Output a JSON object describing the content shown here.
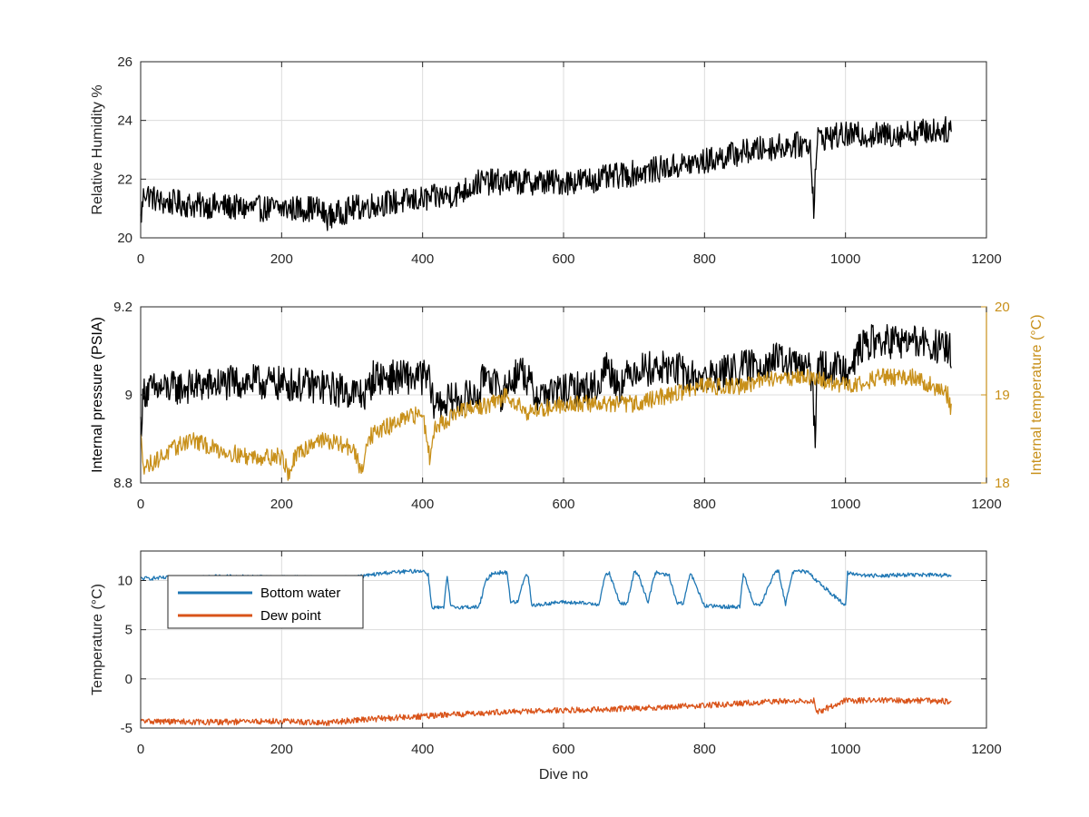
{
  "colors": {
    "humidity": "#000000",
    "pressure": "#000000",
    "internal_temp": "#c8901a",
    "right_axis": "#c8901a",
    "bottom_water": "#1f77b4",
    "dew_point": "#d95319"
  },
  "chart_data": [
    {
      "type": "line",
      "xlabel": "",
      "ylabel": "Relative Humidity %",
      "xlim": [
        0,
        1200
      ],
      "ylim": [
        20,
        26
      ],
      "xticks": [
        0,
        200,
        400,
        600,
        800,
        1000,
        1200
      ],
      "yticks": [
        20,
        22,
        24,
        26
      ],
      "xtick_labels": [
        "0",
        "200",
        "400",
        "600",
        "800",
        "1000",
        "1200"
      ],
      "ytick_labels": [
        "20",
        "22",
        "24",
        "26"
      ],
      "grid": true,
      "series": [
        {
          "x": [
            0,
            5,
            15,
            30,
            50,
            75,
            100,
            150,
            200,
            250,
            265,
            300,
            350,
            400,
            450,
            480,
            500,
            550,
            600,
            650,
            700,
            750,
            800,
            850,
            900,
            950,
            955,
            960,
            1000,
            1050,
            1100,
            1150
          ],
          "y": [
            20.6,
            21.6,
            21.4,
            21.2,
            21.2,
            21.1,
            21.1,
            21.0,
            21.0,
            21.0,
            20.7,
            21.0,
            21.2,
            21.3,
            21.5,
            21.9,
            21.9,
            21.9,
            21.9,
            22.0,
            22.2,
            22.4,
            22.6,
            22.9,
            23.1,
            23.2,
            21.1,
            23.4,
            23.5,
            23.5,
            23.6,
            23.7
          ],
          "noise": 0.45
        }
      ]
    },
    {
      "type": "line",
      "xlabel": "",
      "ylabel": "Internal pressure (PSIA)",
      "ylabel_right": "Internal temperature (°C)",
      "xlim": [
        0,
        1200
      ],
      "ylim": [
        8.8,
        9.2
      ],
      "ylim_right": [
        18,
        20
      ],
      "xticks": [
        0,
        200,
        400,
        600,
        800,
        1000,
        1200
      ],
      "yticks": [
        8.8,
        9,
        9.2
      ],
      "yticks_right": [
        18,
        19,
        20
      ],
      "xtick_labels": [
        "0",
        "200",
        "400",
        "600",
        "800",
        "1000",
        "1200"
      ],
      "ytick_labels": [
        "8.8",
        "9",
        "9.2"
      ],
      "ytick_labels_right": [
        "18",
        "19",
        "20"
      ],
      "grid": true,
      "series": [
        {
          "axis": "left",
          "x": [
            0,
            5,
            80,
            150,
            250,
            320,
            330,
            410,
            412,
            420,
            480,
            490,
            510,
            540,
            560,
            650,
            660,
            680,
            700,
            730,
            760,
            780,
            800,
            850,
            900,
            950,
            957,
            960,
            1000,
            1030,
            1100,
            1150
          ],
          "y": [
            8.93,
            9.01,
            9.02,
            9.03,
            9.02,
            9.0,
            9.04,
            9.04,
            8.99,
            8.98,
            9.0,
            9.06,
            9.0,
            9.06,
            9.0,
            9.02,
            9.07,
            9.02,
            9.06,
            9.06,
            9.06,
            9.04,
            9.04,
            9.06,
            9.08,
            9.06,
            8.92,
            9.06,
            9.06,
            9.12,
            9.12,
            9.1
          ],
          "noise": 0.04
        },
        {
          "axis": "right",
          "x": [
            0,
            5,
            10,
            50,
            70,
            100,
            150,
            200,
            210,
            220,
            250,
            300,
            315,
            320,
            340,
            400,
            410,
            415,
            430,
            450,
            500,
            520,
            550,
            600,
            650,
            700,
            750,
            800,
            850,
            900,
            950,
            1000,
            1050,
            1100,
            1145,
            1150
          ],
          "y": [
            18.5,
            18.2,
            18.2,
            18.4,
            18.5,
            18.4,
            18.3,
            18.3,
            18.1,
            18.3,
            18.5,
            18.4,
            18.1,
            18.5,
            18.6,
            18.8,
            18.3,
            18.6,
            18.7,
            18.8,
            18.9,
            19.0,
            18.8,
            18.9,
            18.9,
            18.9,
            19.0,
            19.1,
            19.1,
            19.2,
            19.2,
            19.1,
            19.2,
            19.2,
            19.0,
            18.8
          ],
          "noise": 0.1
        }
      ]
    },
    {
      "type": "line",
      "xlabel": "Dive no",
      "ylabel": "Temperature (°C)",
      "xlim": [
        0,
        1200
      ],
      "ylim": [
        -5,
        13
      ],
      "xticks": [
        0,
        200,
        400,
        600,
        800,
        1000,
        1200
      ],
      "yticks": [
        -5,
        0,
        5,
        10
      ],
      "xtick_labels": [
        "0",
        "200",
        "400",
        "600",
        "800",
        "1000",
        "1200"
      ],
      "ytick_labels": [
        "-5",
        "0",
        "5",
        "10"
      ],
      "grid": true,
      "legend_position": "top-left",
      "series": [
        {
          "name": "Bottom water",
          "x": [
            0,
            100,
            300,
            350,
            400,
            408,
            413,
            430,
            435,
            440,
            480,
            490,
            500,
            520,
            525,
            535,
            545,
            550,
            555,
            565,
            580,
            600,
            650,
            660,
            665,
            680,
            690,
            700,
            705,
            720,
            730,
            750,
            760,
            770,
            780,
            800,
            850,
            855,
            870,
            880,
            900,
            905,
            915,
            925,
            935,
            945,
            1000,
            1003,
            1030,
            1040,
            1100,
            1150
          ],
          "y": [
            10.2,
            10.4,
            10.3,
            10.8,
            11.0,
            10.6,
            7.3,
            7.2,
            10.5,
            7.3,
            7.3,
            10.0,
            10.8,
            10.8,
            7.8,
            7.8,
            10.5,
            10.5,
            7.5,
            7.5,
            7.7,
            7.8,
            7.6,
            10.7,
            10.7,
            7.7,
            7.6,
            10.8,
            10.8,
            7.8,
            10.8,
            10.5,
            7.8,
            7.6,
            10.8,
            7.4,
            7.3,
            10.8,
            7.6,
            7.6,
            10.9,
            10.9,
            7.6,
            10.9,
            10.9,
            10.9,
            7.4,
            10.8,
            10.5,
            10.5,
            10.6,
            10.5
          ],
          "noise": 0.2
        },
        {
          "name": "Dew point",
          "x": [
            0,
            100,
            200,
            265,
            300,
            400,
            450,
            500,
            600,
            700,
            800,
            900,
            955,
            960,
            1000,
            1100,
            1150
          ],
          "y": [
            -4.3,
            -4.4,
            -4.3,
            -4.5,
            -4.2,
            -3.8,
            -3.6,
            -3.4,
            -3.2,
            -3.0,
            -2.7,
            -2.3,
            -2.2,
            -3.4,
            -2.2,
            -2.2,
            -2.3
          ],
          "noise": 0.3
        }
      ]
    }
  ]
}
